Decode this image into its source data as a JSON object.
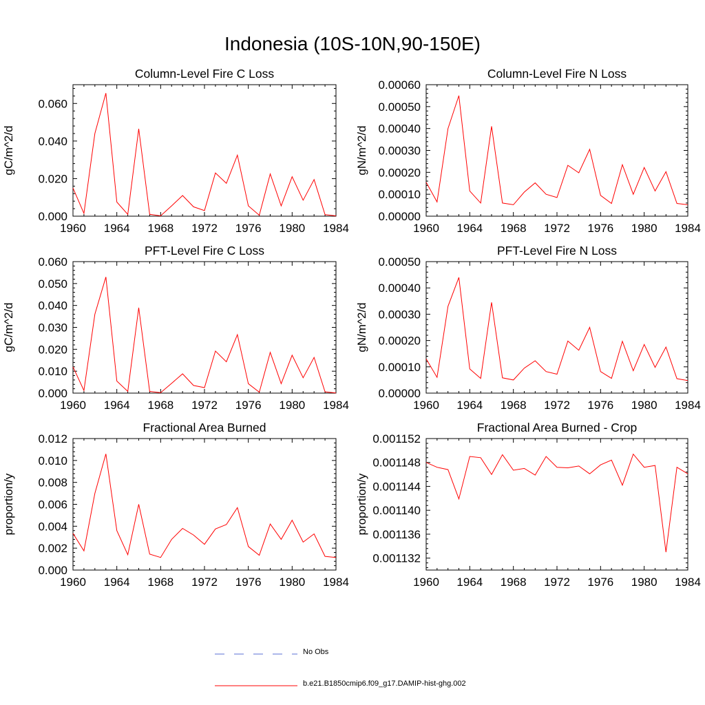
{
  "title": "Indonesia (10S-10N,90-150E)",
  "chart_data": [
    {
      "type": "line",
      "title": "Column-Level Fire C Loss",
      "ylabel": "gC/m^2/d",
      "xlabel": "",
      "xlim": [
        1960,
        1984
      ],
      "ylim": [
        0.0,
        0.07
      ],
      "xticks": [
        "1960",
        "1964",
        "1968",
        "1972",
        "1976",
        "1980",
        "1984"
      ],
      "yticks": [
        "0.000",
        "0.020",
        "0.040",
        "0.060"
      ],
      "ytick_values": [
        0.0,
        0.02,
        0.04,
        0.06
      ],
      "x": [
        1960,
        1961,
        1962,
        1963,
        1964,
        1965,
        1966,
        1967,
        1968,
        1969,
        1970,
        1971,
        1972,
        1973,
        1974,
        1975,
        1976,
        1977,
        1978,
        1979,
        1980,
        1981,
        1982,
        1983,
        1984
      ],
      "series": [
        {
          "name": "b.e21.B1850cmip6.f09_g17.DAMIP-hist-ghg.002",
          "values": [
            0.015,
            0.0015,
            0.044,
            0.0655,
            0.0075,
            0.001,
            0.0465,
            0.001,
            0.0002,
            0.0055,
            0.011,
            0.005,
            0.003,
            0.023,
            0.0175,
            0.0325,
            0.0055,
            0.0005,
            0.0225,
            0.0055,
            0.021,
            0.0085,
            0.0195,
            0.0008,
            0.0002
          ]
        }
      ]
    },
    {
      "type": "line",
      "title": "Column-Level Fire N Loss",
      "ylabel": "gN/m^2/d",
      "xlabel": "",
      "xlim": [
        1960,
        1984
      ],
      "ylim": [
        0.0,
        0.0006
      ],
      "xticks": [
        "1960",
        "1964",
        "1968",
        "1972",
        "1976",
        "1980",
        "1984"
      ],
      "yticks": [
        "0.00000",
        "0.00010",
        "0.00020",
        "0.00030",
        "0.00040",
        "0.00050",
        "0.00060"
      ],
      "ytick_values": [
        0.0,
        0.0001,
        0.0002,
        0.0003,
        0.0004,
        0.0005,
        0.0006
      ],
      "x": [
        1960,
        1961,
        1962,
        1963,
        1964,
        1965,
        1966,
        1967,
        1968,
        1969,
        1970,
        1971,
        1972,
        1973,
        1974,
        1975,
        1976,
        1977,
        1978,
        1979,
        1980,
        1981,
        1982,
        1983,
        1984
      ],
      "series": [
        {
          "name": "b.e21.B1850cmip6.f09_g17.DAMIP-hist-ghg.002",
          "values": [
            0.000155,
            6.5e-05,
            0.0004,
            0.00055,
            0.000115,
            6e-05,
            0.00041,
            6e-05,
            5.2e-05,
            0.00011,
            0.000152,
            0.0001,
            8.5e-05,
            0.000232,
            0.000198,
            0.000305,
            9.5e-05,
            5.8e-05,
            0.000235,
            0.0001,
            0.000222,
            0.000115,
            0.000203,
            5.8e-05,
            5.2e-05
          ]
        }
      ]
    },
    {
      "type": "line",
      "title": "PFT-Level Fire C Loss",
      "ylabel": "gC/m^2/d",
      "xlabel": "",
      "xlim": [
        1960,
        1984
      ],
      "ylim": [
        0.0,
        0.06
      ],
      "xticks": [
        "1960",
        "1964",
        "1968",
        "1972",
        "1976",
        "1980",
        "1984"
      ],
      "yticks": [
        "0.000",
        "0.010",
        "0.020",
        "0.030",
        "0.040",
        "0.050",
        "0.060"
      ],
      "ytick_values": [
        0.0,
        0.01,
        0.02,
        0.03,
        0.04,
        0.05,
        0.06
      ],
      "x": [
        1960,
        1961,
        1962,
        1963,
        1964,
        1965,
        1966,
        1967,
        1968,
        1969,
        1970,
        1971,
        1972,
        1973,
        1974,
        1975,
        1976,
        1977,
        1978,
        1979,
        1980,
        1981,
        1982,
        1983,
        1984
      ],
      "series": [
        {
          "name": "b.e21.B1850cmip6.f09_g17.DAMIP-hist-ghg.002",
          "values": [
            0.012,
            0.0012,
            0.036,
            0.053,
            0.0055,
            0.0008,
            0.039,
            0.0008,
            0.0002,
            0.0045,
            0.0088,
            0.0035,
            0.0025,
            0.0192,
            0.0143,
            0.0267,
            0.0043,
            0.0004,
            0.0186,
            0.0043,
            0.0173,
            0.007,
            0.0163,
            0.0006,
            0.0001
          ]
        }
      ]
    },
    {
      "type": "line",
      "title": "PFT-Level Fire N Loss",
      "ylabel": "gN/m^2/d",
      "xlabel": "",
      "xlim": [
        1960,
        1984
      ],
      "ylim": [
        0.0,
        0.0005
      ],
      "xticks": [
        "1960",
        "1964",
        "1968",
        "1972",
        "1976",
        "1980",
        "1984"
      ],
      "yticks": [
        "0.00000",
        "0.00010",
        "0.00020",
        "0.00030",
        "0.00040",
        "0.00050"
      ],
      "ytick_values": [
        0.0,
        0.0001,
        0.0002,
        0.0003,
        0.0004,
        0.0005
      ],
      "x": [
        1960,
        1961,
        1962,
        1963,
        1964,
        1965,
        1966,
        1967,
        1968,
        1969,
        1970,
        1971,
        1972,
        1973,
        1974,
        1975,
        1976,
        1977,
        1978,
        1979,
        1980,
        1981,
        1982,
        1983,
        1984
      ],
      "series": [
        {
          "name": "b.e21.B1850cmip6.f09_g17.DAMIP-hist-ghg.002",
          "values": [
            0.00013,
            6e-05,
            0.00033,
            0.00044,
            9.2e-05,
            5.6e-05,
            0.000345,
            5.8e-05,
            5e-05,
            9.5e-05,
            0.000123,
            8.2e-05,
            7.2e-05,
            0.000198,
            0.000163,
            0.00025,
            8.2e-05,
            5.6e-05,
            0.000197,
            8.5e-05,
            0.000185,
            9.8e-05,
            0.000175,
            5.5e-05,
            4.8e-05
          ]
        }
      ]
    },
    {
      "type": "line",
      "title": "Fractional Area Burned",
      "ylabel": "proportion/y",
      "xlabel": "",
      "xlim": [
        1960,
        1984
      ],
      "ylim": [
        0.0,
        0.012
      ],
      "xticks": [
        "1960",
        "1964",
        "1968",
        "1972",
        "1976",
        "1980",
        "1984"
      ],
      "yticks": [
        "0.000",
        "0.002",
        "0.004",
        "0.006",
        "0.008",
        "0.010",
        "0.012"
      ],
      "ytick_values": [
        0.0,
        0.002,
        0.004,
        0.006,
        0.008,
        0.01,
        0.012
      ],
      "x": [
        1960,
        1961,
        1962,
        1963,
        1964,
        1965,
        1966,
        1967,
        1968,
        1969,
        1970,
        1971,
        1972,
        1973,
        1974,
        1975,
        1976,
        1977,
        1978,
        1979,
        1980,
        1981,
        1982,
        1983,
        1984
      ],
      "series": [
        {
          "name": "b.e21.B1850cmip6.f09_g17.DAMIP-hist-ghg.002",
          "values": [
            0.00335,
            0.00175,
            0.007,
            0.0106,
            0.0036,
            0.0014,
            0.006,
            0.00145,
            0.00115,
            0.0028,
            0.0038,
            0.0032,
            0.00235,
            0.00375,
            0.00415,
            0.0057,
            0.00215,
            0.00135,
            0.0042,
            0.0028,
            0.00455,
            0.00255,
            0.0033,
            0.00125,
            0.00115
          ]
        }
      ]
    },
    {
      "type": "line",
      "title": "Fractional Area Burned - Crop",
      "ylabel": "proportion/y",
      "xlabel": "",
      "xlim": [
        1960,
        1984
      ],
      "ylim": [
        0.00113,
        0.001152
      ],
      "xticks": [
        "1960",
        "1964",
        "1968",
        "1972",
        "1976",
        "1980",
        "1984"
      ],
      "yticks": [
        "0.001132",
        "0.001136",
        "0.001140",
        "0.001144",
        "0.001148",
        "0.001152"
      ],
      "ytick_values": [
        0.001132,
        0.001136,
        0.00114,
        0.001144,
        0.001148,
        0.001152
      ],
      "x": [
        1960,
        1961,
        1962,
        1963,
        1964,
        1965,
        1966,
        1967,
        1968,
        1969,
        1970,
        1971,
        1972,
        1973,
        1974,
        1975,
        1976,
        1977,
        1978,
        1979,
        1980,
        1981,
        1982,
        1983,
        1984
      ],
      "series": [
        {
          "name": "b.e21.B1850cmip6.f09_g17.DAMIP-hist-ghg.002",
          "values": [
            0.001148,
            0.0011472,
            0.0011468,
            0.0011419,
            0.001149,
            0.0011488,
            0.001146,
            0.0011493,
            0.0011467,
            0.001147,
            0.0011459,
            0.001149,
            0.0011472,
            0.0011471,
            0.0011474,
            0.0011461,
            0.0011476,
            0.0011484,
            0.0011442,
            0.0011494,
            0.0011472,
            0.0011475,
            0.001133,
            0.0011472,
            0.0011461
          ]
        }
      ]
    }
  ],
  "legend": [
    {
      "label": "No Obs",
      "color": "#5a6fd6",
      "style": "dashed"
    },
    {
      "label": "b.e21.B1850cmip6.f09_g17.DAMIP-hist-ghg.002",
      "color": "#ff0000",
      "style": "solid"
    }
  ],
  "colors": {
    "series": "#ff0000",
    "axis": "#000000",
    "obs": "#5a6fd6"
  }
}
